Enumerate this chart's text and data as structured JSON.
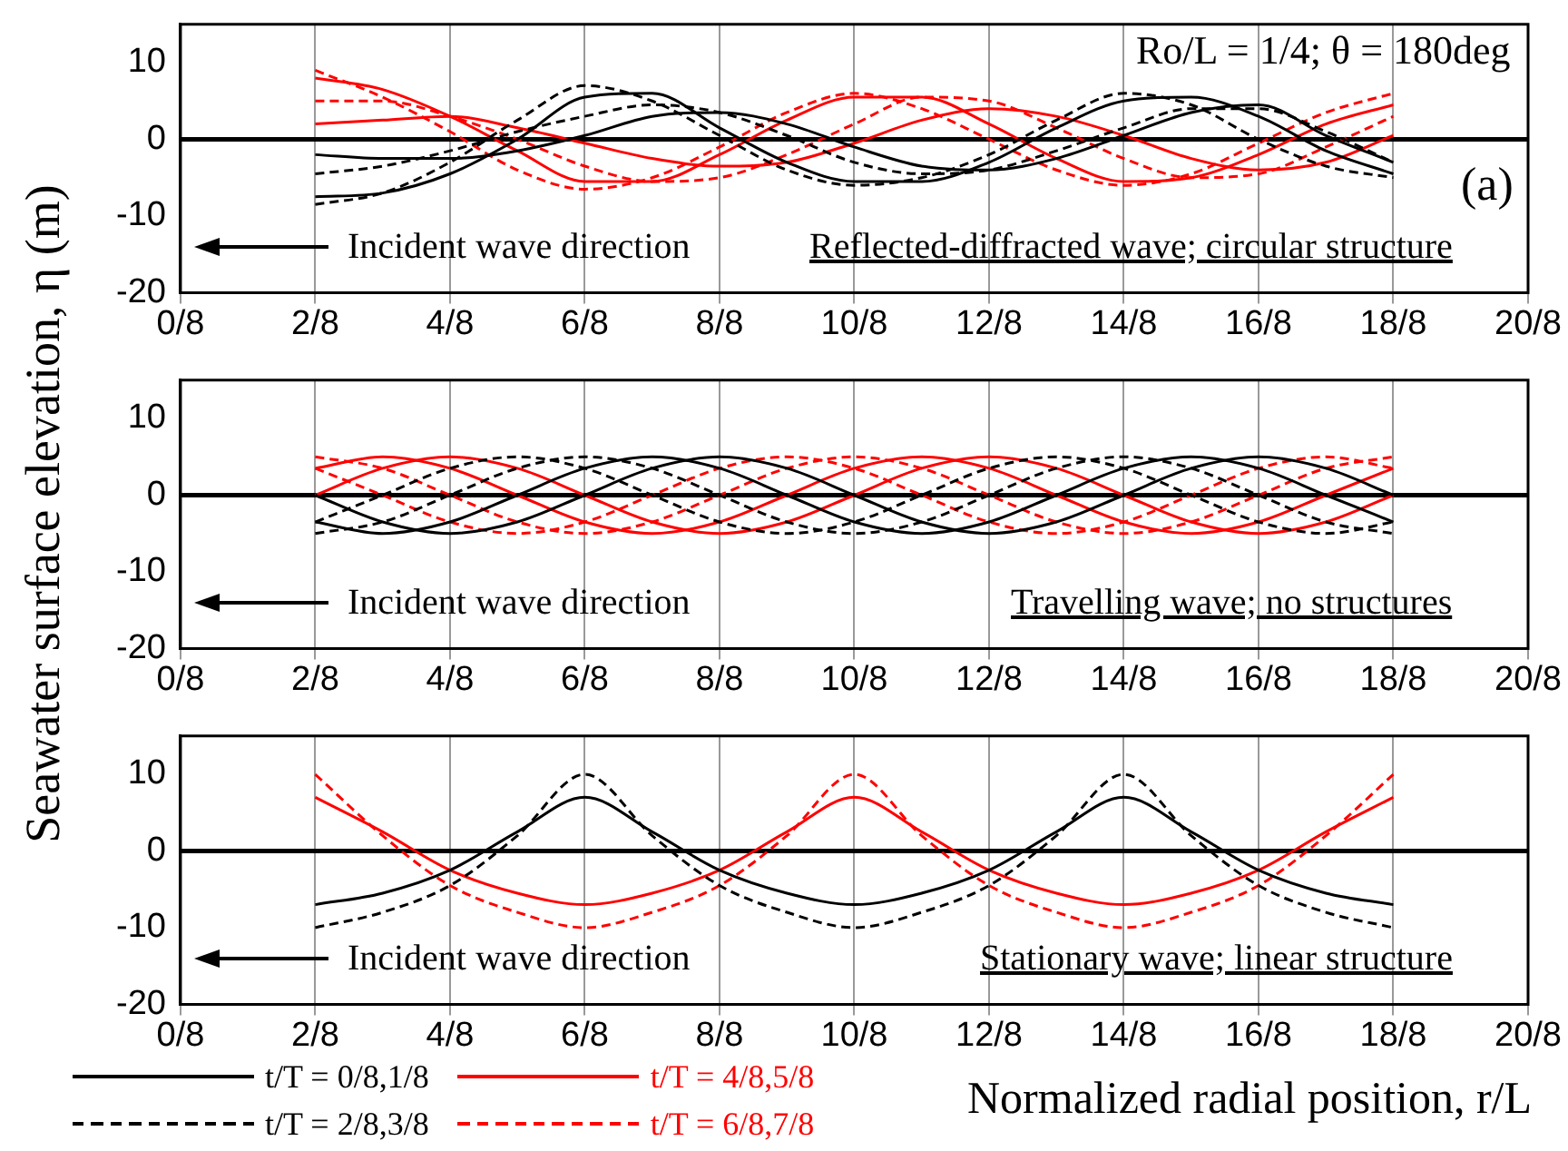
{
  "chart_data": [
    {
      "type": "line",
      "x": [
        0.25,
        0.375,
        0.5,
        0.625,
        0.75,
        0.875,
        1,
        1.125,
        1.25,
        1.375,
        1.5,
        1.625,
        1.75,
        1.875,
        2,
        2.125,
        2.25
      ],
      "xlim": [
        0,
        2.5
      ],
      "xticks": [
        {
          "value": 0,
          "label": "0/8"
        },
        {
          "value": 0.25,
          "label": "2/8"
        },
        {
          "value": 0.5,
          "label": "4/8"
        },
        {
          "value": 0.75,
          "label": "6/8"
        },
        {
          "value": 1,
          "label": "8/8"
        },
        {
          "value": 1.25,
          "label": "10/8"
        },
        {
          "value": 1.5,
          "label": "12/8"
        },
        {
          "value": 1.75,
          "label": "14/8"
        },
        {
          "value": 2,
          "label": "16/8"
        },
        {
          "value": 2.25,
          "label": "18/8"
        },
        {
          "value": 2.5,
          "label": "20/8"
        }
      ],
      "ylim": [
        -20,
        15
      ],
      "yticks": [
        -20,
        -10,
        0,
        10
      ],
      "grid": "x",
      "ref_lines": [
        {
          "axis": "y",
          "value": 0,
          "color": "#000000"
        }
      ],
      "annotations": [
        "Ro/L = 1/4; θ = 180deg",
        "(a)",
        "Incident wave direction",
        "Reflected-diffracted wave; circular structure"
      ],
      "series": [
        {
          "color": "#000000",
          "line_style": "solid",
          "values": [
            -7.5,
            -7,
            -4.5,
            0,
            5.5,
            6,
            1.5,
            -3,
            -5.5,
            -5.5,
            -3,
            1.5,
            5,
            5.5,
            3,
            -1.5,
            -4.5
          ]
        },
        {
          "color": "#000000",
          "line_style": "solid",
          "values": [
            -2,
            -2.5,
            -2.5,
            -1.5,
            0.5,
            3,
            3.5,
            2,
            -1,
            -3.5,
            -4,
            -2.5,
            0.5,
            3.5,
            4.5,
            0.5,
            -3
          ]
        },
        {
          "color": "#000000",
          "line_style": "dashed",
          "values": [
            -8.5,
            -7,
            -3,
            2.5,
            7,
            5,
            0.5,
            -4,
            -6,
            -5,
            -2,
            2.5,
            6,
            4.5,
            0,
            -3.5,
            -5
          ]
        },
        {
          "color": "#000000",
          "line_style": "dashed",
          "values": [
            -4.5,
            -3.5,
            -1.5,
            1,
            3,
            4.5,
            3.5,
            0.5,
            -3,
            -4.5,
            -4,
            -1.5,
            1.5,
            4,
            4,
            1,
            -3
          ]
        },
        {
          "color": "#ff0000",
          "line_style": "solid",
          "values": [
            8,
            6.5,
            3,
            -1.5,
            -5.5,
            -5.5,
            -2,
            2.5,
            5.5,
            5.5,
            2,
            -2.5,
            -5.5,
            -5,
            -2,
            2,
            4.5
          ]
        },
        {
          "color": "#ff0000",
          "line_style": "solid",
          "values": [
            2,
            2.5,
            3,
            1.5,
            -0.5,
            -2.5,
            -3.5,
            -3,
            -0.5,
            2.5,
            4,
            3,
            0.5,
            -2.5,
            -4,
            -3,
            0.5
          ]
        },
        {
          "color": "#ff0000",
          "line_style": "dashed",
          "values": [
            9,
            5.5,
            1,
            -4,
            -6.5,
            -5,
            -1,
            3.5,
            6,
            4,
            0,
            -4,
            -6,
            -4.5,
            -0.5,
            3.5,
            6
          ]
        },
        {
          "color": "#ff0000",
          "line_style": "dashed",
          "values": [
            5,
            5,
            3,
            0,
            -3.5,
            -5.5,
            -5,
            -2,
            2,
            5.5,
            5,
            1.5,
            -2.5,
            -5,
            -4.5,
            -1,
            3
          ]
        }
      ]
    },
    {
      "type": "line",
      "x": [
        0.25,
        0.375,
        0.5,
        0.625,
        0.75,
        0.875,
        1,
        1.125,
        1.25,
        1.375,
        1.5,
        1.625,
        1.75,
        1.875,
        2,
        2.125,
        2.25
      ],
      "xlim": [
        0,
        2.5
      ],
      "xticks": [
        {
          "value": 0,
          "label": "0/8"
        },
        {
          "value": 0.25,
          "label": "2/8"
        },
        {
          "value": 0.5,
          "label": "4/8"
        },
        {
          "value": 0.75,
          "label": "6/8"
        },
        {
          "value": 1,
          "label": "8/8"
        },
        {
          "value": 1.25,
          "label": "10/8"
        },
        {
          "value": 1.5,
          "label": "12/8"
        },
        {
          "value": 1.75,
          "label": "14/8"
        },
        {
          "value": 2,
          "label": "16/8"
        },
        {
          "value": 2.25,
          "label": "18/8"
        },
        {
          "value": 2.5,
          "label": "20/8"
        }
      ],
      "ylim": [
        -20,
        15
      ],
      "yticks": [
        -20,
        -10,
        0,
        10
      ],
      "grid": "x",
      "ylabel": "Seawater surface elevation, η (m)",
      "ref_lines": [
        {
          "axis": "y",
          "value": 0,
          "color": "#000000"
        }
      ],
      "annotations": [
        "Incident wave direction",
        "Travelling wave; no structures"
      ],
      "series": [
        {
          "color": "#000000",
          "line_style": "solid",
          "values": [
            0,
            -3.5,
            -5,
            -3.5,
            0,
            3.5,
            5,
            3.5,
            0,
            -3.5,
            -5,
            -3.5,
            0,
            3.5,
            5,
            3.5,
            0
          ]
        },
        {
          "color": "#000000",
          "line_style": "solid",
          "values": [
            -3.5,
            -5,
            -3.5,
            0,
            3.5,
            5,
            3.5,
            0,
            -3.5,
            -5,
            -3.5,
            0,
            3.5,
            5,
            3.5,
            0,
            -3.5
          ]
        },
        {
          "color": "#000000",
          "line_style": "dashed",
          "values": [
            -5,
            -3.5,
            0,
            3.5,
            5,
            3.5,
            0,
            -3.5,
            -5,
            -3.5,
            0,
            3.5,
            5,
            3.5,
            0,
            -3.5,
            -5
          ]
        },
        {
          "color": "#000000",
          "line_style": "dashed",
          "values": [
            -3.5,
            0,
            3.5,
            5,
            3.5,
            0,
            -3.5,
            -5,
            -3.5,
            0,
            3.5,
            5,
            3.5,
            0,
            -3.5,
            -5,
            -3.5
          ]
        },
        {
          "color": "#ff0000",
          "line_style": "solid",
          "values": [
            0,
            3.5,
            5,
            3.5,
            0,
            -3.5,
            -5,
            -3.5,
            0,
            3.5,
            5,
            3.5,
            0,
            -3.5,
            -5,
            -3.5,
            0
          ]
        },
        {
          "color": "#ff0000",
          "line_style": "solid",
          "values": [
            3.5,
            5,
            3.5,
            0,
            -3.5,
            -5,
            -3.5,
            0,
            3.5,
            5,
            3.5,
            0,
            -3.5,
            -5,
            -3.5,
            0,
            3.5
          ]
        },
        {
          "color": "#ff0000",
          "line_style": "dashed",
          "values": [
            5,
            3.5,
            0,
            -3.5,
            -5,
            -3.5,
            0,
            3.5,
            5,
            3.5,
            0,
            -3.5,
            -5,
            -3.5,
            0,
            3.5,
            5
          ]
        },
        {
          "color": "#ff0000",
          "line_style": "dashed",
          "values": [
            3.5,
            0,
            -3.5,
            -5,
            -3.5,
            0,
            3.5,
            5,
            3.5,
            0,
            -3.5,
            -5,
            -3.5,
            0,
            3.5,
            5,
            3.5
          ]
        }
      ]
    },
    {
      "type": "line",
      "x": [
        0.25,
        0.375,
        0.5,
        0.625,
        0.75,
        0.875,
        1,
        1.125,
        1.25,
        1.375,
        1.5,
        1.625,
        1.75,
        1.875,
        2,
        2.125,
        2.25
      ],
      "xlim": [
        0,
        2.5
      ],
      "xticks": [
        {
          "value": 0,
          "label": "0/8"
        },
        {
          "value": 0.25,
          "label": "2/8"
        },
        {
          "value": 0.5,
          "label": "4/8"
        },
        {
          "value": 0.75,
          "label": "6/8"
        },
        {
          "value": 1,
          "label": "8/8"
        },
        {
          "value": 1.25,
          "label": "10/8"
        },
        {
          "value": 1.5,
          "label": "12/8"
        },
        {
          "value": 1.75,
          "label": "14/8"
        },
        {
          "value": 2,
          "label": "16/8"
        },
        {
          "value": 2.25,
          "label": "18/8"
        },
        {
          "value": 2.5,
          "label": "20/8"
        }
      ],
      "ylim": [
        -20,
        15
      ],
      "yticks": [
        -20,
        -10,
        0,
        10
      ],
      "grid": "x",
      "xlabel": "Normalized radial position, r/L",
      "legend": "bottom left",
      "ref_lines": [
        {
          "axis": "y",
          "value": 0,
          "color": "#000000"
        }
      ],
      "annotations": [
        "Incident wave direction",
        "Stationary wave; linear structure"
      ],
      "series": [
        {
          "name": "t/T = 0/8,1/8",
          "color": "#000000",
          "line_style": "solid",
          "values": [
            -7,
            -5.5,
            -2.5,
            2.5,
            7,
            2.5,
            -2.5,
            -5.5,
            -7,
            -5.5,
            -2.5,
            2.5,
            7,
            2.5,
            -2.5,
            -5.5,
            -7
          ]
        },
        {
          "name": "t/T = 2/8,3/8",
          "color": "#000000",
          "line_style": "dashed",
          "values": [
            -10,
            -8,
            -4.5,
            2,
            10,
            2,
            -4.5,
            -8,
            -10,
            -8,
            -4.5,
            2,
            10,
            2,
            -4.5,
            -8,
            -10
          ]
        },
        {
          "name": "t/T = 4/8,5/8",
          "color": "#ff0000",
          "line_style": "solid",
          "values": [
            7,
            2.5,
            -2.5,
            -5.5,
            -7,
            -5.5,
            -2.5,
            2.5,
            7,
            2.5,
            -2.5,
            -5.5,
            -7,
            -5.5,
            -2.5,
            2.5,
            7
          ]
        },
        {
          "name": "t/T = 6/8,7/8",
          "color": "#ff0000",
          "line_style": "dashed",
          "values": [
            10,
            2,
            -4.5,
            -8,
            -10,
            -8,
            -4.5,
            2,
            10,
            2,
            -4.5,
            -8,
            -10,
            -8,
            -4.5,
            2,
            10
          ]
        }
      ]
    }
  ]
}
